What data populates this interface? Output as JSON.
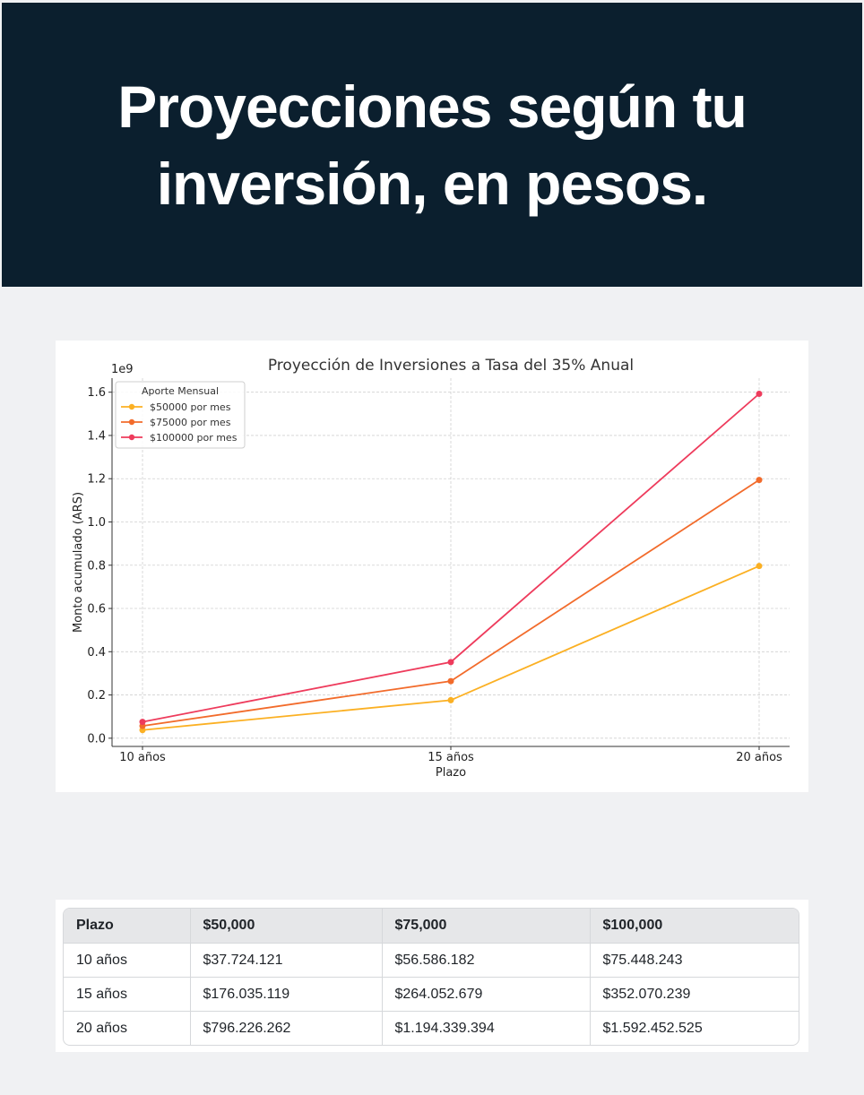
{
  "header": {
    "title": "Proyecciones según tu inversión, en pesos."
  },
  "chart_data": {
    "type": "line",
    "title": "Proyección de Inversiones a Tasa del 35% Anual",
    "xlabel": "Plazo",
    "ylabel": "Monto acumulado (ARS)",
    "y_offset_label": "1e9",
    "categories": [
      "10 años",
      "15 años",
      "20 años"
    ],
    "ylim": [
      -0.038,
      1.665
    ],
    "yticks": [
      0.0,
      0.2,
      0.4,
      0.6,
      0.8,
      1.0,
      1.2,
      1.4,
      1.6
    ],
    "ytick_labels": [
      "0.0",
      "0.2",
      "0.4",
      "0.6",
      "0.8",
      "1.0",
      "1.2",
      "1.4",
      "1.6"
    ],
    "grid": true,
    "legend": {
      "title": "Aporte Mensual",
      "placement": "top-left"
    },
    "series": [
      {
        "name": "$50000 por mes",
        "color": "#fbb023",
        "values": [
          0.0377,
          0.176,
          0.7962
        ]
      },
      {
        "name": "$75000 por mes",
        "color": "#f26b2b",
        "values": [
          0.0566,
          0.2641,
          1.1943
        ]
      },
      {
        "name": "$100000 por mes",
        "color": "#ee3b5c",
        "values": [
          0.0754,
          0.3521,
          1.5925
        ]
      }
    ]
  },
  "table": {
    "headers": [
      "Plazo",
      "$50,000",
      "$75,000",
      "$100,000"
    ],
    "rows": [
      [
        "10 años",
        "$37.724.121",
        "$56.586.182",
        "$75.448.243"
      ],
      [
        "15 años",
        "$176.035.119",
        "$264.052.679",
        "$352.070.239"
      ],
      [
        "20 años",
        "$796.226.262",
        "$1.194.339.394",
        "$1.592.452.525"
      ]
    ]
  }
}
